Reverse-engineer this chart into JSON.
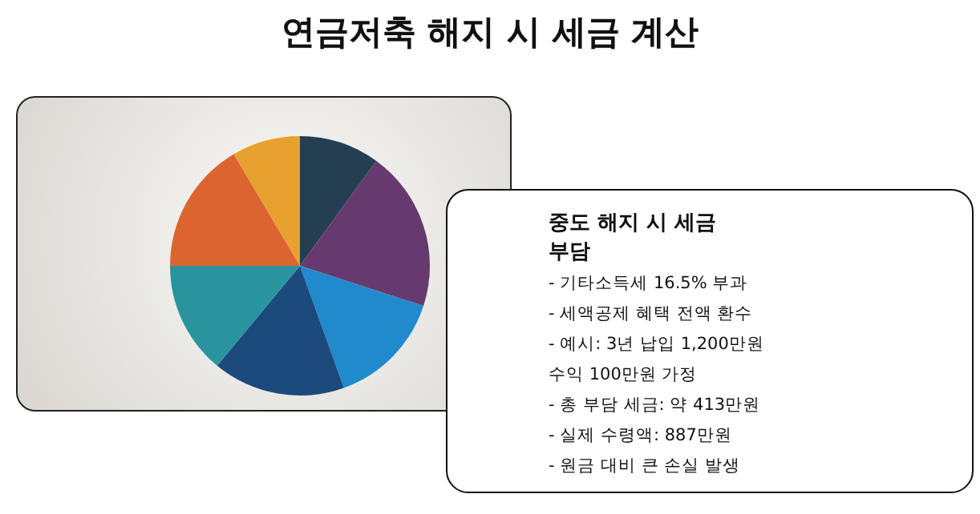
{
  "chart_data": {
    "type": "pie",
    "title": "연금저축 해지 시 세금 계산",
    "categories": [
      null,
      null,
      null,
      null,
      null,
      null,
      null
    ],
    "values": [
      10,
      20,
      14.5,
      16.5,
      14,
      16.5,
      8.5
    ],
    "colors": [
      "#243e52",
      "#663a6e",
      "#1f8bcc",
      "#1d4a7c",
      "#2a949e",
      "#dc6430",
      "#e8a02e"
    ],
    "annotations": [
      "중도 해지 시 세금 부담",
      "- 기타소득세 16.5% 부과",
      "- 세액공제 혜택 전액 환수",
      "- 예시: 3년 납입 1,200만원",
      "수익 100만원 가정",
      "- 총 부담 세금: 약 413만원",
      "- 실제 수령액: 887만원",
      "- 원금 대비 큰 손실 발생"
    ],
    "legend": false
  }
}
